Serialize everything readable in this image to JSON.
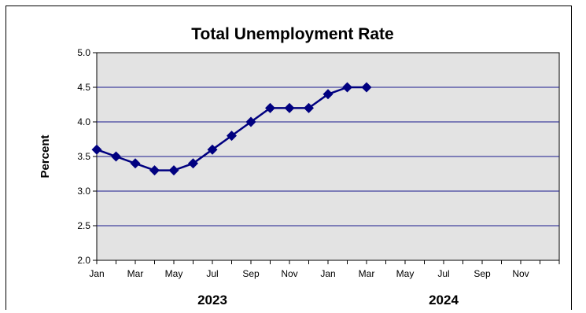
{
  "chart_data": {
    "type": "line",
    "title": "Total Unemployment Rate",
    "ylabel": "Percent",
    "xlabel": "",
    "ylim": [
      2.0,
      5.0
    ],
    "yticks": [
      "2.0",
      "2.5",
      "3.0",
      "3.5",
      "4.0",
      "4.5",
      "5.0"
    ],
    "ytick_values": [
      2.0,
      2.5,
      3.0,
      3.5,
      4.0,
      4.5,
      5.0
    ],
    "xtick_labels": [
      "Jan",
      "Mar",
      "May",
      "Jul",
      "Sep",
      "Nov",
      "Jan",
      "Mar",
      "May",
      "Jul",
      "Sep",
      "Nov"
    ],
    "x_slots": 24,
    "year_labels": [
      "2023",
      "2024"
    ],
    "grid": "horizontal",
    "plot_background": "#e3e3e3",
    "gridline_color": "#1a1a8c",
    "series": [
      {
        "color": "#000080",
        "marker": "diamond",
        "x": [
          "2023-01",
          "2023-02",
          "2023-03",
          "2023-04",
          "2023-05",
          "2023-06",
          "2023-07",
          "2023-08",
          "2023-09",
          "2023-10",
          "2023-11",
          "2023-12",
          "2024-01",
          "2024-02",
          "2024-03"
        ],
        "values": [
          3.6,
          3.5,
          3.4,
          3.3,
          3.3,
          3.4,
          3.6,
          3.8,
          4.0,
          4.2,
          4.2,
          4.2,
          4.4,
          4.5,
          4.5
        ]
      }
    ]
  }
}
